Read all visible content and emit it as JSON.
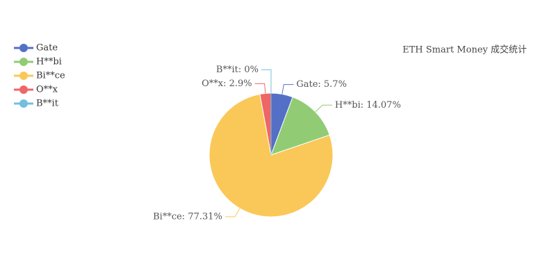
{
  "chart_data": {
    "type": "pie",
    "title": "ETH Smart Money 成交统计",
    "categories": [
      "Gate",
      "H**bi",
      "Bi**ce",
      "O**x",
      "B**it"
    ],
    "values": [
      5.7,
      14.07,
      77.31,
      2.9,
      0
    ],
    "value_labels": [
      "Gate: 5.7%",
      "H**bi: 14.07%",
      "Bi**ce: 77.31%",
      "O**x: 2.9%",
      "B**it: 0%"
    ],
    "colors": [
      "#5470c6",
      "#91cc75",
      "#fac858",
      "#ee6666",
      "#73c0de"
    ],
    "legend": "top-left"
  }
}
